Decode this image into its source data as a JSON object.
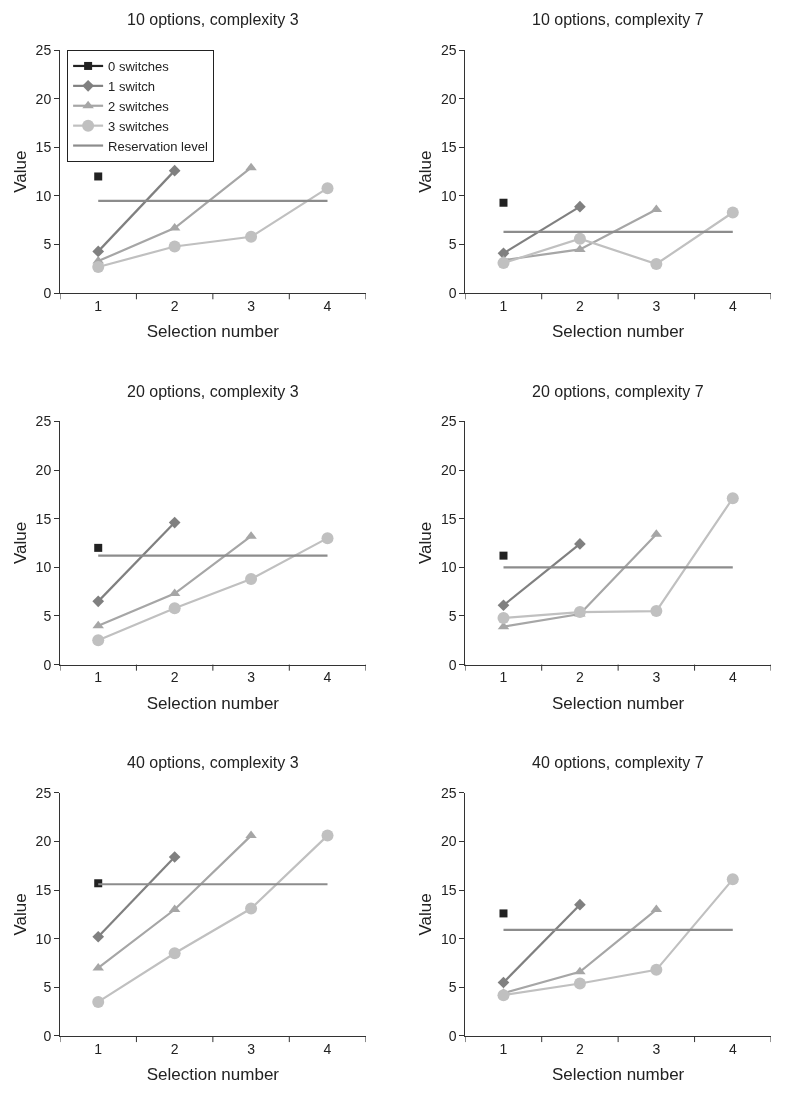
{
  "chart_data": [
    {
      "type": "line",
      "title": "10 options, complexity 3",
      "xlabel": "Selection number",
      "ylabel": "Value",
      "categories": [
        "1",
        "2",
        "3",
        "4"
      ],
      "ylim": [
        0,
        25
      ],
      "yticks": [
        0,
        5,
        10,
        15,
        20,
        25
      ],
      "legend": "top left",
      "series": [
        {
          "name": "0 switches",
          "color": "#222222",
          "marker": "square",
          "values": [
            12.0,
            null,
            null,
            null
          ]
        },
        {
          "name": "1 switch",
          "color": "#808080",
          "marker": "diamond",
          "values": [
            4.3,
            12.6,
            null,
            null
          ]
        },
        {
          "name": "2 switches",
          "color": "#a6a6a6",
          "marker": "triangle",
          "values": [
            3.3,
            6.7,
            12.9,
            null
          ]
        },
        {
          "name": "3 switches",
          "color": "#c0c0c0",
          "marker": "circle",
          "values": [
            2.7,
            4.8,
            5.8,
            10.8
          ]
        },
        {
          "name": "Reservation level",
          "color": "#8c8c8c",
          "marker": "none",
          "values": [
            9.5,
            9.5,
            9.5,
            9.5
          ]
        }
      ]
    },
    {
      "type": "line",
      "title": "10 options, complexity 7",
      "xlabel": "Selection number",
      "ylabel": "Value",
      "categories": [
        "1",
        "2",
        "3",
        "4"
      ],
      "ylim": [
        0,
        25
      ],
      "yticks": [
        0,
        5,
        10,
        15,
        20,
        25
      ],
      "series": [
        {
          "color": "#222222",
          "marker": "square",
          "values": [
            9.3,
            null,
            null,
            null
          ]
        },
        {
          "color": "#808080",
          "marker": "diamond",
          "values": [
            4.1,
            8.9,
            null,
            null
          ]
        },
        {
          "color": "#a6a6a6",
          "marker": "triangle",
          "values": [
            3.4,
            4.5,
            8.6,
            null
          ]
        },
        {
          "color": "#c0c0c0",
          "marker": "circle",
          "values": [
            3.1,
            5.6,
            3.0,
            8.3
          ]
        },
        {
          "color": "#8c8c8c",
          "marker": "none",
          "values": [
            6.3,
            6.3,
            6.3,
            6.3
          ]
        }
      ]
    },
    {
      "type": "line",
      "title": "20 options, complexity 3",
      "xlabel": "Selection number",
      "ylabel": "Value",
      "categories": [
        "1",
        "2",
        "3",
        "4"
      ],
      "ylim": [
        0,
        25
      ],
      "yticks": [
        0,
        5,
        10,
        15,
        20,
        25
      ],
      "series": [
        {
          "color": "#222222",
          "marker": "square",
          "values": [
            12.0,
            null,
            null,
            null
          ]
        },
        {
          "color": "#808080",
          "marker": "diamond",
          "values": [
            6.5,
            14.6,
            null,
            null
          ]
        },
        {
          "color": "#a6a6a6",
          "marker": "triangle",
          "values": [
            4.0,
            7.3,
            13.2,
            null
          ]
        },
        {
          "color": "#c0c0c0",
          "marker": "circle",
          "values": [
            2.5,
            5.8,
            8.8,
            13.0
          ]
        },
        {
          "color": "#8c8c8c",
          "marker": "none",
          "values": [
            11.2,
            11.2,
            11.2,
            11.2
          ]
        }
      ]
    },
    {
      "type": "line",
      "title": "20 options, complexity 7",
      "xlabel": "Selection number",
      "ylabel": "Value",
      "categories": [
        "1",
        "2",
        "3",
        "4"
      ],
      "ylim": [
        0,
        25
      ],
      "yticks": [
        0,
        5,
        10,
        15,
        20,
        25
      ],
      "series": [
        {
          "color": "#222222",
          "marker": "square",
          "values": [
            11.2,
            null,
            null,
            null
          ]
        },
        {
          "color": "#808080",
          "marker": "diamond",
          "values": [
            6.1,
            12.4,
            null,
            null
          ]
        },
        {
          "color": "#a6a6a6",
          "marker": "triangle",
          "values": [
            3.9,
            5.2,
            13.4,
            null
          ]
        },
        {
          "color": "#c0c0c0",
          "marker": "circle",
          "values": [
            4.8,
            5.4,
            5.5,
            17.1
          ]
        },
        {
          "color": "#8c8c8c",
          "marker": "none",
          "values": [
            10.0,
            10.0,
            10.0,
            10.0
          ]
        }
      ]
    },
    {
      "type": "line",
      "title": "40 options, complexity 3",
      "xlabel": "Selection number",
      "ylabel": "Value",
      "categories": [
        "1",
        "2",
        "3",
        "4"
      ],
      "ylim": [
        0,
        25
      ],
      "yticks": [
        0,
        5,
        10,
        15,
        20,
        25
      ],
      "series": [
        {
          "color": "#222222",
          "marker": "square",
          "values": [
            15.7,
            null,
            null,
            null
          ]
        },
        {
          "color": "#808080",
          "marker": "diamond",
          "values": [
            10.2,
            18.4,
            null,
            null
          ]
        },
        {
          "color": "#a6a6a6",
          "marker": "triangle",
          "values": [
            7.0,
            13.0,
            20.6,
            null
          ]
        },
        {
          "color": "#c0c0c0",
          "marker": "circle",
          "values": [
            3.5,
            8.5,
            13.1,
            20.6
          ]
        },
        {
          "color": "#8c8c8c",
          "marker": "none",
          "values": [
            15.6,
            15.6,
            15.6,
            15.6
          ]
        }
      ]
    },
    {
      "type": "line",
      "title": "40 options, complexity 7",
      "xlabel": "Selection number",
      "ylabel": "Value",
      "categories": [
        "1",
        "2",
        "3",
        "4"
      ],
      "ylim": [
        0,
        25
      ],
      "yticks": [
        0,
        5,
        10,
        15,
        20,
        25
      ],
      "series": [
        {
          "color": "#222222",
          "marker": "square",
          "values": [
            12.6,
            null,
            null,
            null
          ]
        },
        {
          "color": "#808080",
          "marker": "diamond",
          "values": [
            5.5,
            13.5,
            null,
            null
          ]
        },
        {
          "color": "#a6a6a6",
          "marker": "triangle",
          "values": [
            4.4,
            6.6,
            13.0,
            null
          ]
        },
        {
          "color": "#c0c0c0",
          "marker": "circle",
          "values": [
            4.2,
            5.4,
            6.8,
            16.1
          ]
        },
        {
          "color": "#8c8c8c",
          "marker": "none",
          "values": [
            10.9,
            10.9,
            10.9,
            10.9
          ]
        }
      ]
    }
  ]
}
